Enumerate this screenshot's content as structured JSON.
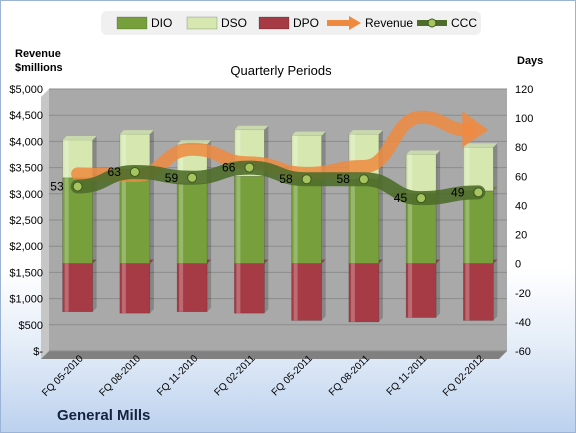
{
  "company": "General Mills",
  "chart_data": {
    "type": "bar",
    "title": "Quarterly Periods",
    "left_axis_title": "Revenue\n$millions",
    "right_axis_title": "Days",
    "categories": [
      "FQ 05-2010",
      "FQ 08-2010",
      "FQ 11-2010",
      "FQ 02-2011",
      "FQ 05-2011",
      "FQ 08-2011",
      "FQ 11-2011",
      "FQ 02-2012"
    ],
    "left_ylim": [
      0,
      5000
    ],
    "left_ticks": [
      "$-",
      "$500",
      "$1,000",
      "$1,500",
      "$2,000",
      "$2,500",
      "$3,000",
      "$3,500",
      "$4,000",
      "$4,500",
      "$5,000"
    ],
    "right_ylim": [
      -60,
      120
    ],
    "right_ticks": [
      "-60",
      "-40",
      "-20",
      "0",
      "20",
      "40",
      "60",
      "80",
      "100",
      "120"
    ],
    "legend": [
      "DIO",
      "DSO",
      "DPO",
      "Revenue",
      "CCC"
    ],
    "series": [
      {
        "name": "DIO",
        "axis": "right",
        "values": [
          59,
          58,
          55,
          60,
          58,
          58,
          48,
          50
        ]
      },
      {
        "name": "DSO",
        "axis": "right",
        "values": [
          26,
          31,
          27,
          32,
          30,
          31,
          27,
          30
        ]
      },
      {
        "name": "DPO",
        "axis": "right",
        "values": [
          -33,
          -34,
          -33,
          -34,
          -39,
          -40,
          -37,
          -39
        ]
      },
      {
        "name": "Revenue",
        "axis": "left",
        "values": [
          3380,
          3350,
          3850,
          3590,
          3390,
          3520,
          4460,
          4140
        ]
      },
      {
        "name": "CCC",
        "axis": "right",
        "values": [
          53,
          63,
          59,
          66,
          58,
          58,
          45,
          49
        ]
      }
    ],
    "ccc_labels": [
      "53",
      "63",
      "59",
      "66",
      "58",
      "58",
      "45",
      "49"
    ],
    "colors": {
      "DIO": "#77a03c",
      "DSO": "#d6e8b0",
      "DPO": "#a63a45",
      "Revenue": "#ee8a40",
      "CCC": "#4f6d2a",
      "plot_bg": "#a9a9a9",
      "side_wall": "#c6c6c6",
      "floor": "#808080"
    },
    "grid": true,
    "legend_position": "top"
  }
}
